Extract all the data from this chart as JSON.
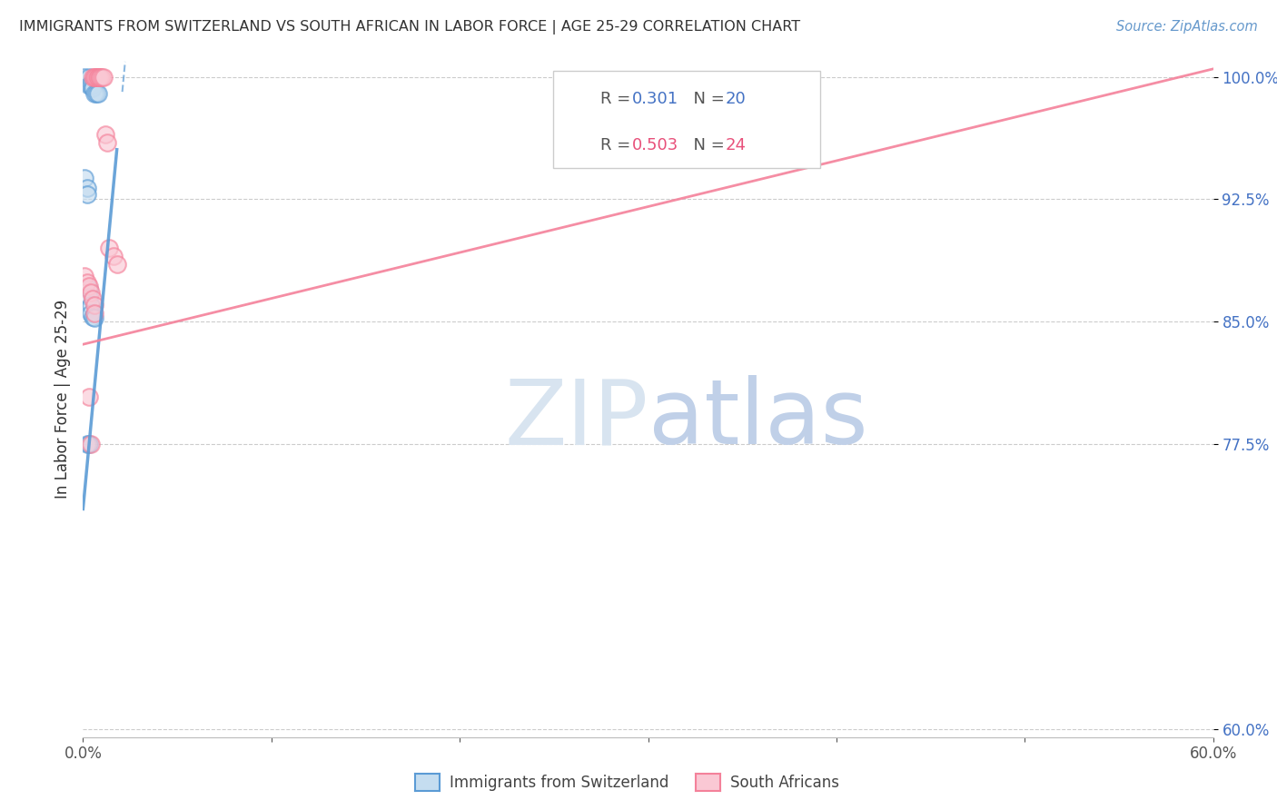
{
  "title": "IMMIGRANTS FROM SWITZERLAND VS SOUTH AFRICAN IN LABOR FORCE | AGE 25-29 CORRELATION CHART",
  "source": "Source: ZipAtlas.com",
  "ylabel": "In Labor Force | Age 25-29",
  "xlim": [
    0.0,
    0.6
  ],
  "ylim": [
    0.595,
    1.01
  ],
  "xticks": [
    0.0,
    0.1,
    0.2,
    0.3,
    0.4,
    0.5,
    0.6
  ],
  "xticklabels": [
    "0.0%",
    "",
    "",
    "",
    "",
    "",
    "60.0%"
  ],
  "yticks": [
    0.6,
    0.775,
    0.85,
    0.925,
    1.0
  ],
  "yticklabels": [
    "60.0%",
    "77.5%",
    "85.0%",
    "92.5%",
    "100.0%"
  ],
  "blue_R": 0.301,
  "blue_N": 20,
  "pink_R": 0.503,
  "pink_N": 24,
  "blue_color": "#5b9bd5",
  "blue_face": "#c5ddf0",
  "pink_color": "#f4819a",
  "pink_face": "#fac8d4",
  "blue_label": "Immigrants from Switzerland",
  "pink_label": "South Africans",
  "blue_scatter_x": [
    0.001,
    0.003,
    0.003,
    0.004,
    0.005,
    0.005,
    0.006,
    0.007,
    0.008,
    0.001,
    0.002,
    0.002,
    0.003,
    0.003,
    0.004,
    0.004,
    0.005,
    0.006,
    0.002,
    0.003
  ],
  "blue_scatter_y": [
    1.0,
    1.0,
    0.995,
    0.995,
    0.995,
    0.993,
    0.99,
    0.99,
    0.99,
    0.938,
    0.932,
    0.928,
    0.87,
    0.865,
    0.86,
    0.855,
    0.853,
    0.852,
    0.775,
    0.775
  ],
  "pink_scatter_x": [
    0.005,
    0.006,
    0.006,
    0.007,
    0.008,
    0.008,
    0.009,
    0.009,
    0.01,
    0.011,
    0.012,
    0.013,
    0.014,
    0.016,
    0.018,
    0.001,
    0.002,
    0.003,
    0.004,
    0.005,
    0.006,
    0.006,
    0.003,
    0.004
  ],
  "pink_scatter_y": [
    1.0,
    1.0,
    1.0,
    1.0,
    1.0,
    1.0,
    1.0,
    1.0,
    1.0,
    1.0,
    0.965,
    0.96,
    0.895,
    0.89,
    0.885,
    0.878,
    0.874,
    0.872,
    0.868,
    0.864,
    0.86,
    0.855,
    0.804,
    0.775
  ],
  "background_color": "#ffffff",
  "grid_color": "#cccccc",
  "title_color": "#333333",
  "ytick_color": "#4472c4",
  "r_color_blue": "#4472c4",
  "r_color_pink": "#e8507a",
  "watermark_zip": "#d8e4f0",
  "watermark_atlas": "#c0d0e8",
  "blue_line_x": [
    0.0,
    0.022
  ],
  "blue_line_y": [
    0.735,
    1.005
  ],
  "pink_line_x": [
    0.0,
    0.6
  ],
  "pink_line_y": [
    0.836,
    1.005
  ]
}
